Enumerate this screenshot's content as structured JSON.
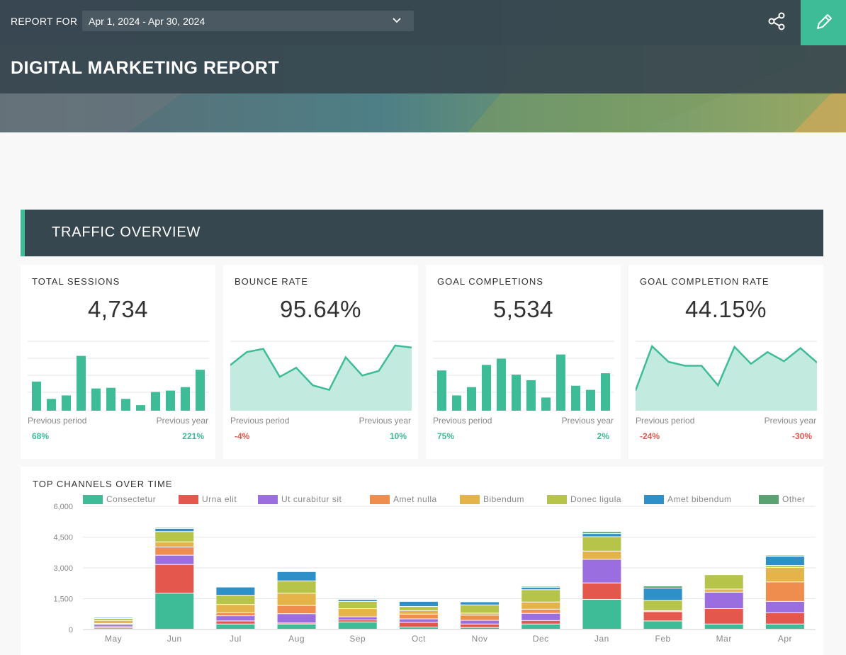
{
  "header": {
    "report_for_label": "REPORT FOR",
    "date_range": "Apr 1, 2024 - Apr 30, 2024",
    "title": "DIGITAL MARKETING REPORT"
  },
  "section": {
    "title": "TRAFFIC OVERVIEW"
  },
  "colors": {
    "accent": "#3dbc97",
    "negative": "#e4574c",
    "header_bg": "#37474f"
  },
  "kpis": [
    {
      "label": "TOTAL SESSIONS",
      "value": "4,734",
      "chart": "bar",
      "spark": [
        0.42,
        0.17,
        0.22,
        0.79,
        0.32,
        0.33,
        0.17,
        0.08,
        0.27,
        0.29,
        0.34,
        0.59
      ],
      "prev_period_label": "Previous period",
      "prev_year_label": "Previous year",
      "prev_period": "68%",
      "prev_year": "221%",
      "prev_period_trend": "up",
      "prev_year_trend": "up"
    },
    {
      "label": "BOUNCE RATE",
      "value": "95.64%",
      "chart": "area",
      "spark": [
        0.7,
        0.9,
        0.95,
        0.52,
        0.66,
        0.39,
        0.32,
        0.82,
        0.54,
        0.61,
        1.0,
        0.97
      ],
      "prev_period_label": "Previous period",
      "prev_year_label": "Previous year",
      "prev_period": "-4%",
      "prev_year": "10%",
      "prev_period_trend": "down",
      "prev_year_trend": "up"
    },
    {
      "label": "GOAL COMPLETIONS",
      "value": "5,534",
      "chart": "bar",
      "spark": [
        0.58,
        0.22,
        0.34,
        0.66,
        0.75,
        0.52,
        0.44,
        0.19,
        0.81,
        0.36,
        0.3,
        0.54
      ],
      "prev_period_label": "Previous period",
      "prev_year_label": "Previous year",
      "prev_period": "75%",
      "prev_year": "2%",
      "prev_period_trend": "up",
      "prev_year_trend": "up"
    },
    {
      "label": "GOAL COMPLETION RATE",
      "value": "44.15%",
      "chart": "area",
      "spark": [
        0.31,
        0.99,
        0.75,
        0.69,
        0.69,
        0.39,
        0.98,
        0.72,
        0.9,
        0.76,
        0.96,
        0.74
      ],
      "prev_period_label": "Previous period",
      "prev_year_label": "Previous year",
      "prev_period": "-24%",
      "prev_year": "-30%",
      "prev_period_trend": "down",
      "prev_year_trend": "down"
    }
  ],
  "top_channels": {
    "label": "TOP CHANNELS OVER TIME"
  },
  "chart_data": {
    "type": "bar",
    "stacked": true,
    "title": "TOP CHANNELS OVER TIME",
    "categories": [
      "May",
      "Jun",
      "Jul",
      "Aug",
      "Sep",
      "Oct",
      "Nov",
      "Dec",
      "Jan",
      "Feb",
      "Mar",
      "Apr"
    ],
    "ylim": [
      0,
      6000
    ],
    "yticks": [
      "0",
      "1,500",
      "3,000",
      "4,500",
      "6,000"
    ],
    "ytick_values": [
      0,
      1500,
      3000,
      4500,
      6000
    ],
    "grid": true,
    "legend_position": "top",
    "series": [
      {
        "name": "Consectetur",
        "color": "#3dbc97",
        "values": [
          60,
          1750,
          250,
          250,
          350,
          100,
          80,
          250,
          1450,
          400,
          250,
          250
        ]
      },
      {
        "name": "Urna elit",
        "color": "#e4574c",
        "values": [
          60,
          1400,
          150,
          50,
          100,
          230,
          170,
          170,
          800,
          450,
          750,
          550
        ]
      },
      {
        "name": "Ut curabitur sit",
        "color": "#9b6ee0",
        "values": [
          100,
          450,
          250,
          450,
          150,
          170,
          180,
          350,
          1150,
          0,
          800,
          550
        ]
      },
      {
        "name": "Amet nulla",
        "color": "#ef8d4f",
        "values": [
          60,
          400,
          150,
          400,
          0,
          230,
          250,
          200,
          0,
          0,
          0,
          950
        ]
      },
      {
        "name": "Bibendum",
        "color": "#e4b44a",
        "values": [
          140,
          250,
          400,
          600,
          400,
          170,
          100,
          350,
          400,
          50,
          150,
          700
        ]
      },
      {
        "name": "Donec ligula",
        "color": "#b6c44a",
        "values": [
          100,
          500,
          450,
          600,
          350,
          200,
          400,
          600,
          700,
          500,
          700,
          100
        ]
      },
      {
        "name": "Amet bibendum",
        "color": "#2f8fc9",
        "values": [
          50,
          150,
          400,
          450,
          100,
          250,
          150,
          120,
          150,
          600,
          0,
          450
        ]
      },
      {
        "name": "Other",
        "color": "#5aa271",
        "values": [
          0,
          50,
          0,
          0,
          0,
          0,
          0,
          50,
          100,
          100,
          0,
          50
        ]
      }
    ]
  }
}
